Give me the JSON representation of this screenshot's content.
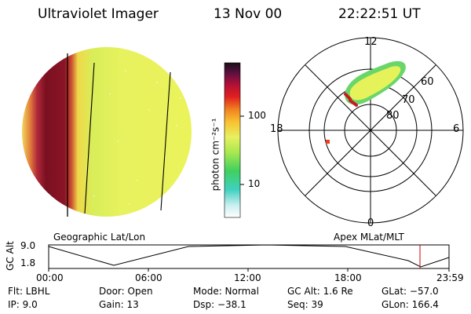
{
  "header": {
    "instrument": "Ultraviolet Imager",
    "date": "13 Nov 00",
    "time": "22:22:51 UT"
  },
  "colorbar": {
    "unit_label": "photon cm⁻²s⁻¹",
    "ticks": [
      {
        "label": "100",
        "value": 100
      },
      {
        "label": "10",
        "value": 10
      }
    ]
  },
  "globe": {
    "caption": "Geographic Lat/Lon"
  },
  "polar_plot": {
    "caption": "Apex MLat/MLT",
    "mlt_labels": [
      {
        "label": "12"
      },
      {
        "label": "6"
      },
      {
        "label": "0"
      },
      {
        "label": "18"
      }
    ],
    "mlat_labels": [
      {
        "label": "60"
      },
      {
        "label": "70"
      },
      {
        "label": "80"
      }
    ]
  },
  "altitude_plot": {
    "ylabel": "GC Alt",
    "yticks": [
      {
        "label": "9.0",
        "value": 9.0
      },
      {
        "label": "1.8",
        "value": 1.8
      }
    ],
    "xticks": [
      "00:00",
      "06:00",
      "12:00",
      "18:00",
      "23:59"
    ],
    "marker_time": "22:22:51"
  },
  "status": {
    "flt": "Flt: LBHL",
    "ip": "IP:  9.0",
    "door": "Door: Open",
    "gain": "Gain: 13",
    "mode": "Mode: Normal",
    "dsp": "Dsp:  −38.1",
    "gcalt": "GC Alt: 1.6 Re",
    "seq": "Seq: 39",
    "glat": "GLat: −57.0",
    "glon": "GLon: 166.4"
  },
  "colors": {
    "background": "#ffffff",
    "dayside_yellow": "#e6f25a",
    "aurora_red": "#b01018",
    "marker_red": "#cc0000"
  }
}
